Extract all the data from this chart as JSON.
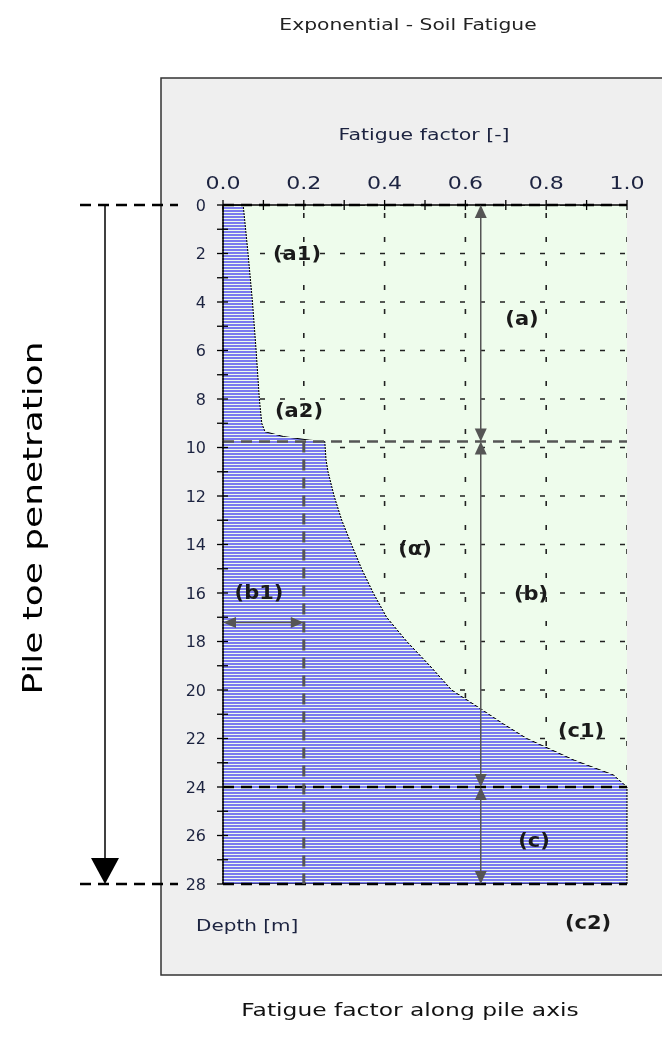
{
  "chart_data": {
    "type": "area",
    "orientation": "horizontal",
    "title": "Exponential - Soil Fatigue",
    "xlabel": "Fatigue factor [-]",
    "ylabel": "Depth [m]",
    "xlim": [
      0,
      1
    ],
    "xticks": [
      {
        "value": 0,
        "label": "0.0"
      },
      {
        "value": 0.1,
        "label": null
      },
      {
        "value": 0.2,
        "label": "0.2"
      },
      {
        "value": 0.3,
        "label": null
      },
      {
        "value": 0.4,
        "label": "0.4"
      },
      {
        "value": 0.5,
        "label": null
      },
      {
        "value": 0.6,
        "label": "0.6"
      },
      {
        "value": 0.7,
        "label": null
      },
      {
        "value": 0.8,
        "label": "0.8"
      },
      {
        "value": 0.9,
        "label": null
      },
      {
        "value": 1,
        "label": "1.0"
      }
    ],
    "ylim": [
      28,
      0
    ],
    "yticks": [
      0,
      {
        "value": 1,
        "label": null
      },
      2,
      {
        "value": 3,
        "label": null
      },
      4,
      {
        "value": 5,
        "label": null
      },
      6,
      {
        "value": 7,
        "label": null
      },
      8,
      {
        "value": 9,
        "label": null
      },
      10,
      {
        "value": 11,
        "label": null
      },
      12,
      {
        "value": 13,
        "label": null
      },
      14,
      {
        "value": 15,
        "label": null
      },
      16,
      {
        "value": 17,
        "label": null
      },
      18,
      {
        "value": 19,
        "label": null
      },
      20,
      {
        "value": 21,
        "label": null
      },
      22,
      {
        "value": 23,
        "label": null
      },
      24,
      {
        "value": 25,
        "label": null
      },
      26,
      {
        "value": 27,
        "label": null
      },
      28
    ],
    "grid": true,
    "series": [
      {
        "color": "#7b7bef",
        "x": [
          0,
          2,
          4,
          6,
          8,
          9,
          9.35,
          9.55,
          9.7,
          9.75,
          10.5,
          11,
          12,
          13,
          14,
          15,
          16,
          17,
          18,
          19,
          20,
          20.8,
          21.4,
          22,
          22.9,
          23.5,
          24,
          28
        ],
        "values": [
          0.05,
          0.062,
          0.073,
          0.082,
          0.09,
          0.096,
          0.104,
          0.15,
          0.215,
          0.252,
          0.255,
          0.26,
          0.275,
          0.294,
          0.318,
          0.343,
          0.372,
          0.405,
          0.455,
          0.512,
          0.566,
          0.64,
          0.694,
          0.752,
          0.87,
          0.966,
          1,
          1
        ]
      },
      {
        "type": "line",
        "color": "#555555",
        "line_style": "dashed",
        "x": [
          9.75,
          28
        ],
        "values": [
          0.2,
          0.2
        ]
      }
    ],
    "ref_lines": [
      {
        "axis": "y",
        "value": 0,
        "color": "#000000",
        "line_style": "dashed"
      },
      {
        "axis": "y",
        "value": 9.75,
        "color": "#555555",
        "line_style": "dashed"
      },
      {
        "axis": "y",
        "value": 24,
        "color": "#000000",
        "line_style": "dashed"
      },
      {
        "axis": "y",
        "value": 28,
        "color": "#000000",
        "line_style": "dashed"
      }
    ],
    "annotations": [
      "(a1)",
      "(a2)",
      "(a)",
      "(α)",
      "(b)",
      "(b1)",
      "(c1)",
      "(c)",
      "(c2)",
      "Pile toe penetration",
      "Fatigue factor along pile axis"
    ]
  }
}
